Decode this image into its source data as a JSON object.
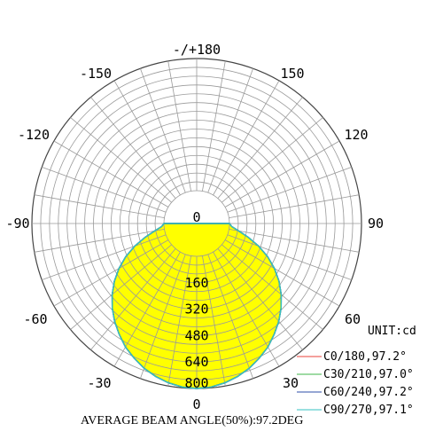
{
  "chart_data": {
    "type": "polar",
    "unit_label": "UNIT:cd",
    "footer": "AVERAGE BEAM ANGLE(50%):97.2DEG",
    "angle_labels": [
      {
        "angle": 180,
        "text": "-/+180"
      },
      {
        "angle": 150,
        "text": "150"
      },
      {
        "angle": -150,
        "text": "-150"
      },
      {
        "angle": 120,
        "text": "120"
      },
      {
        "angle": -120,
        "text": "-120"
      },
      {
        "angle": 90,
        "text": "90"
      },
      {
        "angle": -90,
        "text": "-90"
      },
      {
        "angle": 60,
        "text": "60"
      },
      {
        "angle": -60,
        "text": "-60"
      },
      {
        "angle": 30,
        "text": "30"
      },
      {
        "angle": -30,
        "text": "-30"
      },
      {
        "angle": 0,
        "text": "0"
      }
    ],
    "radial_ticks": [
      0,
      160,
      320,
      480,
      640,
      800
    ],
    "radial_max": 800,
    "fill_color": "#ffff00",
    "series": [
      {
        "name": "C0/180,97.2°",
        "color": "#e8403a"
      },
      {
        "name": "C30/210,97.0°",
        "color": "#3cb54a"
      },
      {
        "name": "C60/240,97.2°",
        "color": "#2e4fa8"
      },
      {
        "name": "C90/270,97.1°",
        "color": "#36c2c2"
      }
    ],
    "curve": {
      "angles": [
        0,
        5,
        10,
        15,
        20,
        25,
        30,
        35,
        40,
        45,
        50,
        55,
        60,
        65,
        70,
        75,
        80,
        85,
        90
      ],
      "values": [
        800,
        795,
        781,
        760,
        734,
        700,
        665,
        620,
        575,
        525,
        470,
        410,
        345,
        275,
        200,
        125,
        60,
        15,
        0
      ]
    }
  }
}
